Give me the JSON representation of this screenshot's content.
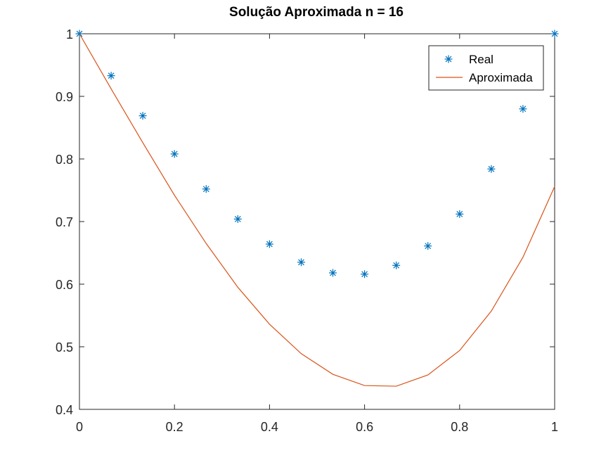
{
  "chart_data": {
    "type": "line",
    "title": "Solução Aproximada n = 16",
    "xlabel": "",
    "ylabel": "",
    "xlim": [
      0,
      1
    ],
    "ylim": [
      0.4,
      1
    ],
    "xticks": [
      0,
      0.2,
      0.4,
      0.6,
      0.8,
      1
    ],
    "xtick_labels": [
      "0",
      "0.2",
      "0.4",
      "0.6",
      "0.8",
      "1"
    ],
    "yticks": [
      0.4,
      0.5,
      0.6,
      0.7,
      0.8,
      0.9,
      1
    ],
    "ytick_labels": [
      "0.4",
      "0.5",
      "0.6",
      "0.7",
      "0.8",
      "0.9",
      "1"
    ],
    "grid": false,
    "legend_position": "top-right",
    "x": [
      0,
      0.0667,
      0.1333,
      0.2,
      0.2667,
      0.3333,
      0.4,
      0.4667,
      0.5333,
      0.6,
      0.6667,
      0.7333,
      0.8,
      0.8667,
      0.9333,
      1
    ],
    "series": [
      {
        "name": "Real",
        "style": "markers",
        "marker": "asterisk",
        "color": "#0072BD",
        "values": [
          1.0,
          0.933,
          0.869,
          0.808,
          0.752,
          0.704,
          0.664,
          0.635,
          0.618,
          0.616,
          0.63,
          0.661,
          0.712,
          0.784,
          0.88,
          1.0
        ]
      },
      {
        "name": "Aproximada",
        "style": "line",
        "color": "#D95319",
        "values": [
          1.0,
          0.912,
          0.826,
          0.742,
          0.665,
          0.595,
          0.536,
          0.489,
          0.456,
          0.438,
          0.437,
          0.455,
          0.494,
          0.557,
          0.643,
          0.756
        ]
      }
    ]
  }
}
